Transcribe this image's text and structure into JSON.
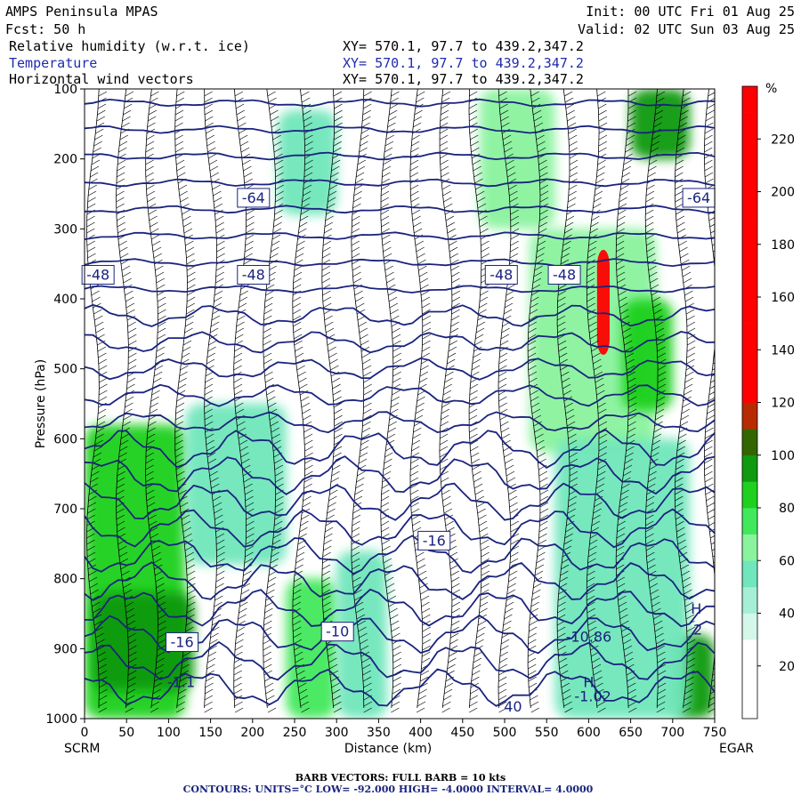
{
  "header": {
    "model": "AMPS Peninsula MPAS",
    "forecast": "Fcst:   50 h",
    "init": "Init: 00 UTC Fri 01 Aug 25",
    "valid": "Valid: 02 UTC Sun 03 Aug 25",
    "fields": [
      {
        "label": "Relative humidity (w.r.t. ice)",
        "xy": "XY= 570.1, 97.7 to 439.2,347.2",
        "color": "#000000"
      },
      {
        "label": "Temperature",
        "xy": "XY= 570.1, 97.7 to 439.2,347.2",
        "color": "#1e2bb0"
      },
      {
        "label": "Horizontal wind vectors",
        "xy": "XY= 570.1, 97.7 to 439.2,347.2",
        "color": "#000000"
      }
    ]
  },
  "footer": {
    "barb_note": "BARB VECTORS:  FULL BARB = 10 kts",
    "contours_note": "CONTOURS:  UNITS=°C  LOW= -92.000     HIGH= -4.0000     INTERVAL=   4.0000"
  },
  "chart_data": {
    "type": "heatmap",
    "description_fields": [
      "relative humidity shading",
      "temperature contours",
      "wind barbs"
    ],
    "xlabel": "Distance (km)",
    "ylabel": "Pressure (hPa)",
    "x_start_label": "SCRM",
    "x_end_label": "EGAR",
    "xlim": [
      0,
      750
    ],
    "ylim": [
      1000,
      100
    ],
    "x_ticks": [
      0,
      50,
      100,
      150,
      200,
      250,
      300,
      350,
      400,
      450,
      500,
      550,
      600,
      650,
      700,
      750
    ],
    "y_ticks": [
      100,
      200,
      300,
      400,
      500,
      600,
      700,
      800,
      900,
      1000
    ],
    "colorbar": {
      "unit": "%",
      "tick_labels": [
        20,
        40,
        60,
        80,
        100,
        120,
        140,
        160,
        180,
        200,
        220
      ],
      "levels": [
        {
          "min": 0,
          "max": 10,
          "color": "#ffffff"
        },
        {
          "min": 10,
          "max": 20,
          "color": "#ffffff"
        },
        {
          "min": 20,
          "max": 30,
          "color": "#ffffff"
        },
        {
          "min": 30,
          "max": 40,
          "color": "#d4f7ea"
        },
        {
          "min": 40,
          "max": 50,
          "color": "#a4efd5"
        },
        {
          "min": 50,
          "max": 60,
          "color": "#6fe6bb"
        },
        {
          "min": 60,
          "max": 70,
          "color": "#8af39e"
        },
        {
          "min": 70,
          "max": 80,
          "color": "#42e85c"
        },
        {
          "min": 80,
          "max": 90,
          "color": "#1fd01f"
        },
        {
          "min": 90,
          "max": 100,
          "color": "#109a10"
        },
        {
          "min": 100,
          "max": 110,
          "color": "#336600"
        },
        {
          "min": 110,
          "max": 120,
          "color": "#b82a00"
        },
        {
          "min": 120,
          "max": 130,
          "color": "#ff0000"
        },
        {
          "min": 130,
          "max": 140,
          "color": "#ff0000"
        },
        {
          "min": 140,
          "max": 150,
          "color": "#ff0000"
        },
        {
          "min": 150,
          "max": 160,
          "color": "#ff0000"
        },
        {
          "min": 160,
          "max": 170,
          "color": "#ff0000"
        },
        {
          "min": 170,
          "max": 180,
          "color": "#ff0000"
        },
        {
          "min": 180,
          "max": 190,
          "color": "#ff0000"
        },
        {
          "min": 190,
          "max": 200,
          "color": "#ff0000"
        },
        {
          "min": 200,
          "max": 210,
          "color": "#ff0000"
        },
        {
          "min": 210,
          "max": 220,
          "color": "#ff0000"
        },
        {
          "min": 220,
          "max": 230,
          "color": "#ff0000"
        },
        {
          "min": 230,
          "max": 240,
          "color": "#ff0000"
        }
      ]
    },
    "temperature_contours": {
      "units": "°C",
      "low": -92.0,
      "high": -4.0,
      "interval": 4.0,
      "color": "#1a237e",
      "labels": [
        {
          "text": "-64",
          "x": 200,
          "p": 255
        },
        {
          "text": "-64",
          "x": 730,
          "p": 255
        },
        {
          "text": "-48",
          "x": 15,
          "p": 365
        },
        {
          "text": "-48",
          "x": 200,
          "p": 365
        },
        {
          "text": "-48",
          "x": 495,
          "p": 365
        },
        {
          "text": "-48",
          "x": 570,
          "p": 365
        },
        {
          "text": "-16",
          "x": 415,
          "p": 745
        },
        {
          "text": "-16",
          "x": 115,
          "p": 890
        },
        {
          "text": "-10",
          "x": 300,
          "p": 875
        }
      ],
      "stray_labels": [
        {
          "text": "-1.1",
          "x": 115,
          "p": 955
        },
        {
          "text": "-10.86",
          "x": 600,
          "p": 890
        },
        {
          "text": "H",
          "x": 600,
          "p": 955
        },
        {
          "text": "-1.02",
          "x": 605,
          "p": 975
        },
        {
          "text": "2",
          "x": 730,
          "p": 880
        },
        {
          "text": "H",
          "x": 728,
          "p": 850
        },
        {
          "text": "40",
          "x": 510,
          "p": 990
        }
      ]
    },
    "rh_moist_regions": [
      {
        "x": [
          0,
          120
        ],
        "p": [
          580,
          1000
        ],
        "rh": 80
      },
      {
        "x": [
          10,
          130
        ],
        "p": [
          820,
          960
        ],
        "rh": 95
      },
      {
        "x": [
          120,
          240
        ],
        "p": [
          550,
          780
        ],
        "rh": 55
      },
      {
        "x": [
          240,
          300
        ],
        "p": [
          800,
          1000
        ],
        "rh": 70
      },
      {
        "x": [
          300,
          360
        ],
        "p": [
          760,
          1000
        ],
        "rh": 55
      },
      {
        "x": [
          230,
          300
        ],
        "p": [
          130,
          280
        ],
        "rh": 55
      },
      {
        "x": [
          470,
          560
        ],
        "p": [
          100,
          300
        ],
        "rh": 65
      },
      {
        "x": [
          530,
          680
        ],
        "p": [
          300,
          620
        ],
        "rh": 60
      },
      {
        "x": [
          610,
          625
        ],
        "p": [
          330,
          480
        ],
        "rh": 150
      },
      {
        "x": [
          650,
          720
        ],
        "p": [
          100,
          200
        ],
        "rh": 90
      },
      {
        "x": [
          640,
          700
        ],
        "p": [
          400,
          560
        ],
        "rh": 80
      },
      {
        "x": [
          700,
          750
        ],
        "p": [
          880,
          1000
        ],
        "rh": 95
      },
      {
        "x": [
          560,
          720
        ],
        "p": [
          600,
          1000
        ],
        "rh": 55
      }
    ],
    "wind_barb_columns_km": [
      10,
      45,
      80,
      115,
      150,
      185,
      220,
      255,
      290,
      325,
      360,
      395,
      430,
      465,
      500,
      535,
      570,
      605,
      640,
      675,
      710,
      745
    ]
  }
}
